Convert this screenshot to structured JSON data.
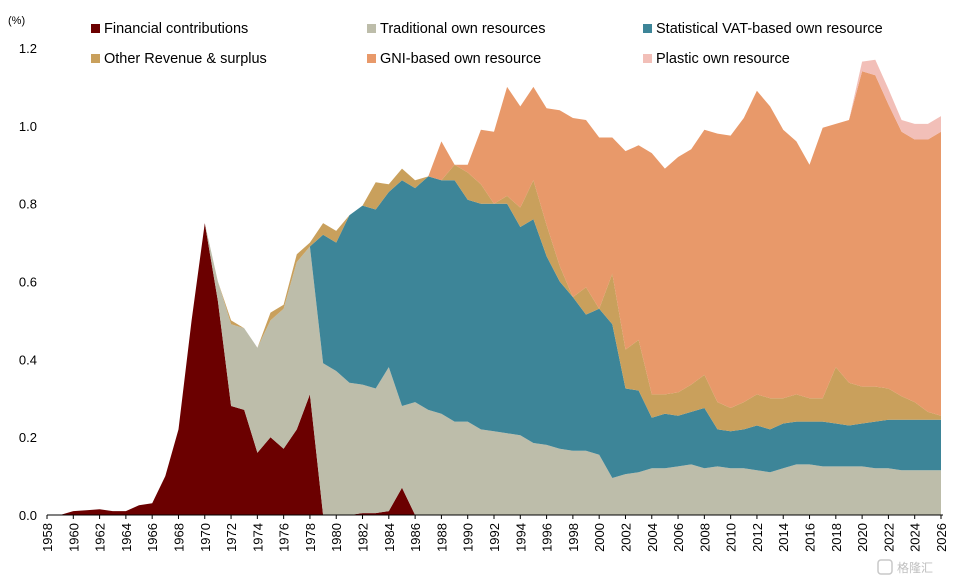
{
  "chart_data": {
    "type": "area",
    "stacked": true,
    "unit_label": "(%)",
    "ylim": [
      0,
      1.2
    ],
    "yticks": [
      "0.0",
      "0.2",
      "0.4",
      "0.6",
      "0.8",
      "1.0",
      "1.2"
    ],
    "xlim": [
      1958,
      2026
    ],
    "xticks": [
      1958,
      1960,
      1962,
      1964,
      1966,
      1968,
      1970,
      1972,
      1974,
      1976,
      1978,
      1980,
      1982,
      1984,
      1986,
      1988,
      1990,
      1992,
      1994,
      1996,
      1998,
      2000,
      2002,
      2004,
      2006,
      2008,
      2010,
      2012,
      2014,
      2016,
      2018,
      2020,
      2022,
      2024,
      2026
    ],
    "x": [
      1958,
      1959,
      1960,
      1961,
      1962,
      1963,
      1964,
      1965,
      1966,
      1967,
      1968,
      1969,
      1970,
      1971,
      1972,
      1973,
      1974,
      1975,
      1976,
      1977,
      1978,
      1979,
      1980,
      1981,
      1982,
      1983,
      1984,
      1985,
      1986,
      1987,
      1988,
      1989,
      1990,
      1991,
      1992,
      1993,
      1994,
      1995,
      1996,
      1997,
      1998,
      1999,
      2000,
      2001,
      2002,
      2003,
      2004,
      2005,
      2006,
      2007,
      2008,
      2009,
      2010,
      2011,
      2012,
      2013,
      2014,
      2015,
      2016,
      2017,
      2018,
      2019,
      2020,
      2021,
      2022,
      2023,
      2024,
      2025,
      2026
    ],
    "series": [
      {
        "name": "Financial contributions",
        "color": "#6b0000",
        "values": [
          0.0,
          0.0,
          0.01,
          0.012,
          0.015,
          0.01,
          0.01,
          0.025,
          0.03,
          0.1,
          0.22,
          0.5,
          0.75,
          0.55,
          0.28,
          0.27,
          0.16,
          0.2,
          0.17,
          0.22,
          0.31,
          0.0,
          0.0,
          0.0,
          0.005,
          0.005,
          0.01,
          0.07,
          0.0,
          0,
          0,
          0,
          0,
          0,
          0,
          0,
          0,
          0,
          0,
          0,
          0,
          0,
          0,
          0,
          0,
          0,
          0,
          0,
          0,
          0,
          0,
          0,
          0,
          0,
          0,
          0,
          0,
          0,
          0,
          0,
          0,
          0,
          0,
          0,
          0,
          0,
          0,
          0,
          0
        ]
      },
      {
        "name": "Traditional own resources",
        "color": "#bdbdaa",
        "values": [
          0,
          0,
          0,
          0,
          0,
          0,
          0,
          0,
          0,
          0,
          0,
          0,
          0.0,
          0.05,
          0.21,
          0.21,
          0.27,
          0.3,
          0.36,
          0.43,
          0.38,
          0.39,
          0.37,
          0.34,
          0.33,
          0.32,
          0.37,
          0.21,
          0.29,
          0.27,
          0.26,
          0.24,
          0.24,
          0.22,
          0.215,
          0.21,
          0.205,
          0.185,
          0.18,
          0.17,
          0.165,
          0.165,
          0.155,
          0.095,
          0.105,
          0.11,
          0.12,
          0.12,
          0.125,
          0.13,
          0.12,
          0.125,
          0.12,
          0.12,
          0.115,
          0.11,
          0.12,
          0.13,
          0.13,
          0.125,
          0.125,
          0.125,
          0.125,
          0.12,
          0.12,
          0.115,
          0.115,
          0.115,
          0.115
        ]
      },
      {
        "name": "Statistical VAT-based own resource",
        "color": "#3d8598",
        "values": [
          0,
          0,
          0,
          0,
          0,
          0,
          0,
          0,
          0,
          0,
          0,
          0,
          0,
          0,
          0,
          0,
          0,
          0,
          0,
          0,
          0.0,
          0.33,
          0.33,
          0.43,
          0.46,
          0.46,
          0.45,
          0.58,
          0.55,
          0.6,
          0.6,
          0.62,
          0.57,
          0.58,
          0.585,
          0.59,
          0.535,
          0.575,
          0.485,
          0.43,
          0.395,
          0.35,
          0.375,
          0.395,
          0.22,
          0.21,
          0.13,
          0.14,
          0.13,
          0.135,
          0.155,
          0.095,
          0.095,
          0.1,
          0.115,
          0.11,
          0.115,
          0.11,
          0.11,
          0.115,
          0.11,
          0.105,
          0.11,
          0.12,
          0.125,
          0.13,
          0.13,
          0.13,
          0.13
        ]
      },
      {
        "name": "Other Revenue & surplus",
        "color": "#c9a05c",
        "values": [
          0,
          0,
          0,
          0,
          0,
          0,
          0,
          0,
          0,
          0,
          0,
          0,
          0.0,
          0.0,
          0.01,
          0.0,
          0.0,
          0.02,
          0.01,
          0.02,
          0.01,
          0.03,
          0.03,
          0.0,
          0.0,
          0.07,
          0.02,
          0.03,
          0.02,
          0.0,
          0.0,
          0.04,
          0.07,
          0.05,
          0.0,
          0.02,
          0.05,
          0.1,
          0.08,
          0.04,
          0.0,
          0.07,
          0.0,
          0.13,
          0.1,
          0.13,
          0.06,
          0.05,
          0.06,
          0.07,
          0.085,
          0.07,
          0.06,
          0.07,
          0.08,
          0.08,
          0.065,
          0.07,
          0.06,
          0.06,
          0.145,
          0.11,
          0.095,
          0.09,
          0.08,
          0.06,
          0.045,
          0.02,
          0.01
        ]
      },
      {
        "name": "GNI-based own resource",
        "color": "#e8996a",
        "values": [
          0,
          0,
          0,
          0,
          0,
          0,
          0,
          0,
          0,
          0,
          0,
          0,
          0,
          0,
          0,
          0,
          0,
          0,
          0,
          0,
          0,
          0,
          0,
          0,
          0,
          0,
          0,
          0,
          0,
          0,
          0.1,
          0.0,
          0.02,
          0.14,
          0.185,
          0.28,
          0.26,
          0.24,
          0.3,
          0.4,
          0.46,
          0.43,
          0.44,
          0.35,
          0.51,
          0.5,
          0.62,
          0.58,
          0.605,
          0.605,
          0.63,
          0.69,
          0.7,
          0.73,
          0.78,
          0.75,
          0.69,
          0.65,
          0.6,
          0.695,
          0.625,
          0.675,
          0.81,
          0.8,
          0.73,
          0.68,
          0.675,
          0.7,
          0.73
        ]
      },
      {
        "name": "Plastic own resource",
        "color": "#f2bfb8",
        "values": [
          0,
          0,
          0,
          0,
          0,
          0,
          0,
          0,
          0,
          0,
          0,
          0,
          0,
          0,
          0,
          0,
          0,
          0,
          0,
          0,
          0,
          0,
          0,
          0,
          0,
          0,
          0,
          0,
          0,
          0,
          0,
          0,
          0,
          0,
          0,
          0,
          0,
          0,
          0,
          0,
          0,
          0,
          0,
          0,
          0,
          0,
          0,
          0,
          0,
          0,
          0,
          0,
          0,
          0,
          0,
          0,
          0,
          0,
          0,
          0,
          0,
          0,
          0.025,
          0.04,
          0.04,
          0.03,
          0.04,
          0.04,
          0.04
        ]
      }
    ],
    "legend_placement": "top"
  },
  "watermark": "格隆汇"
}
